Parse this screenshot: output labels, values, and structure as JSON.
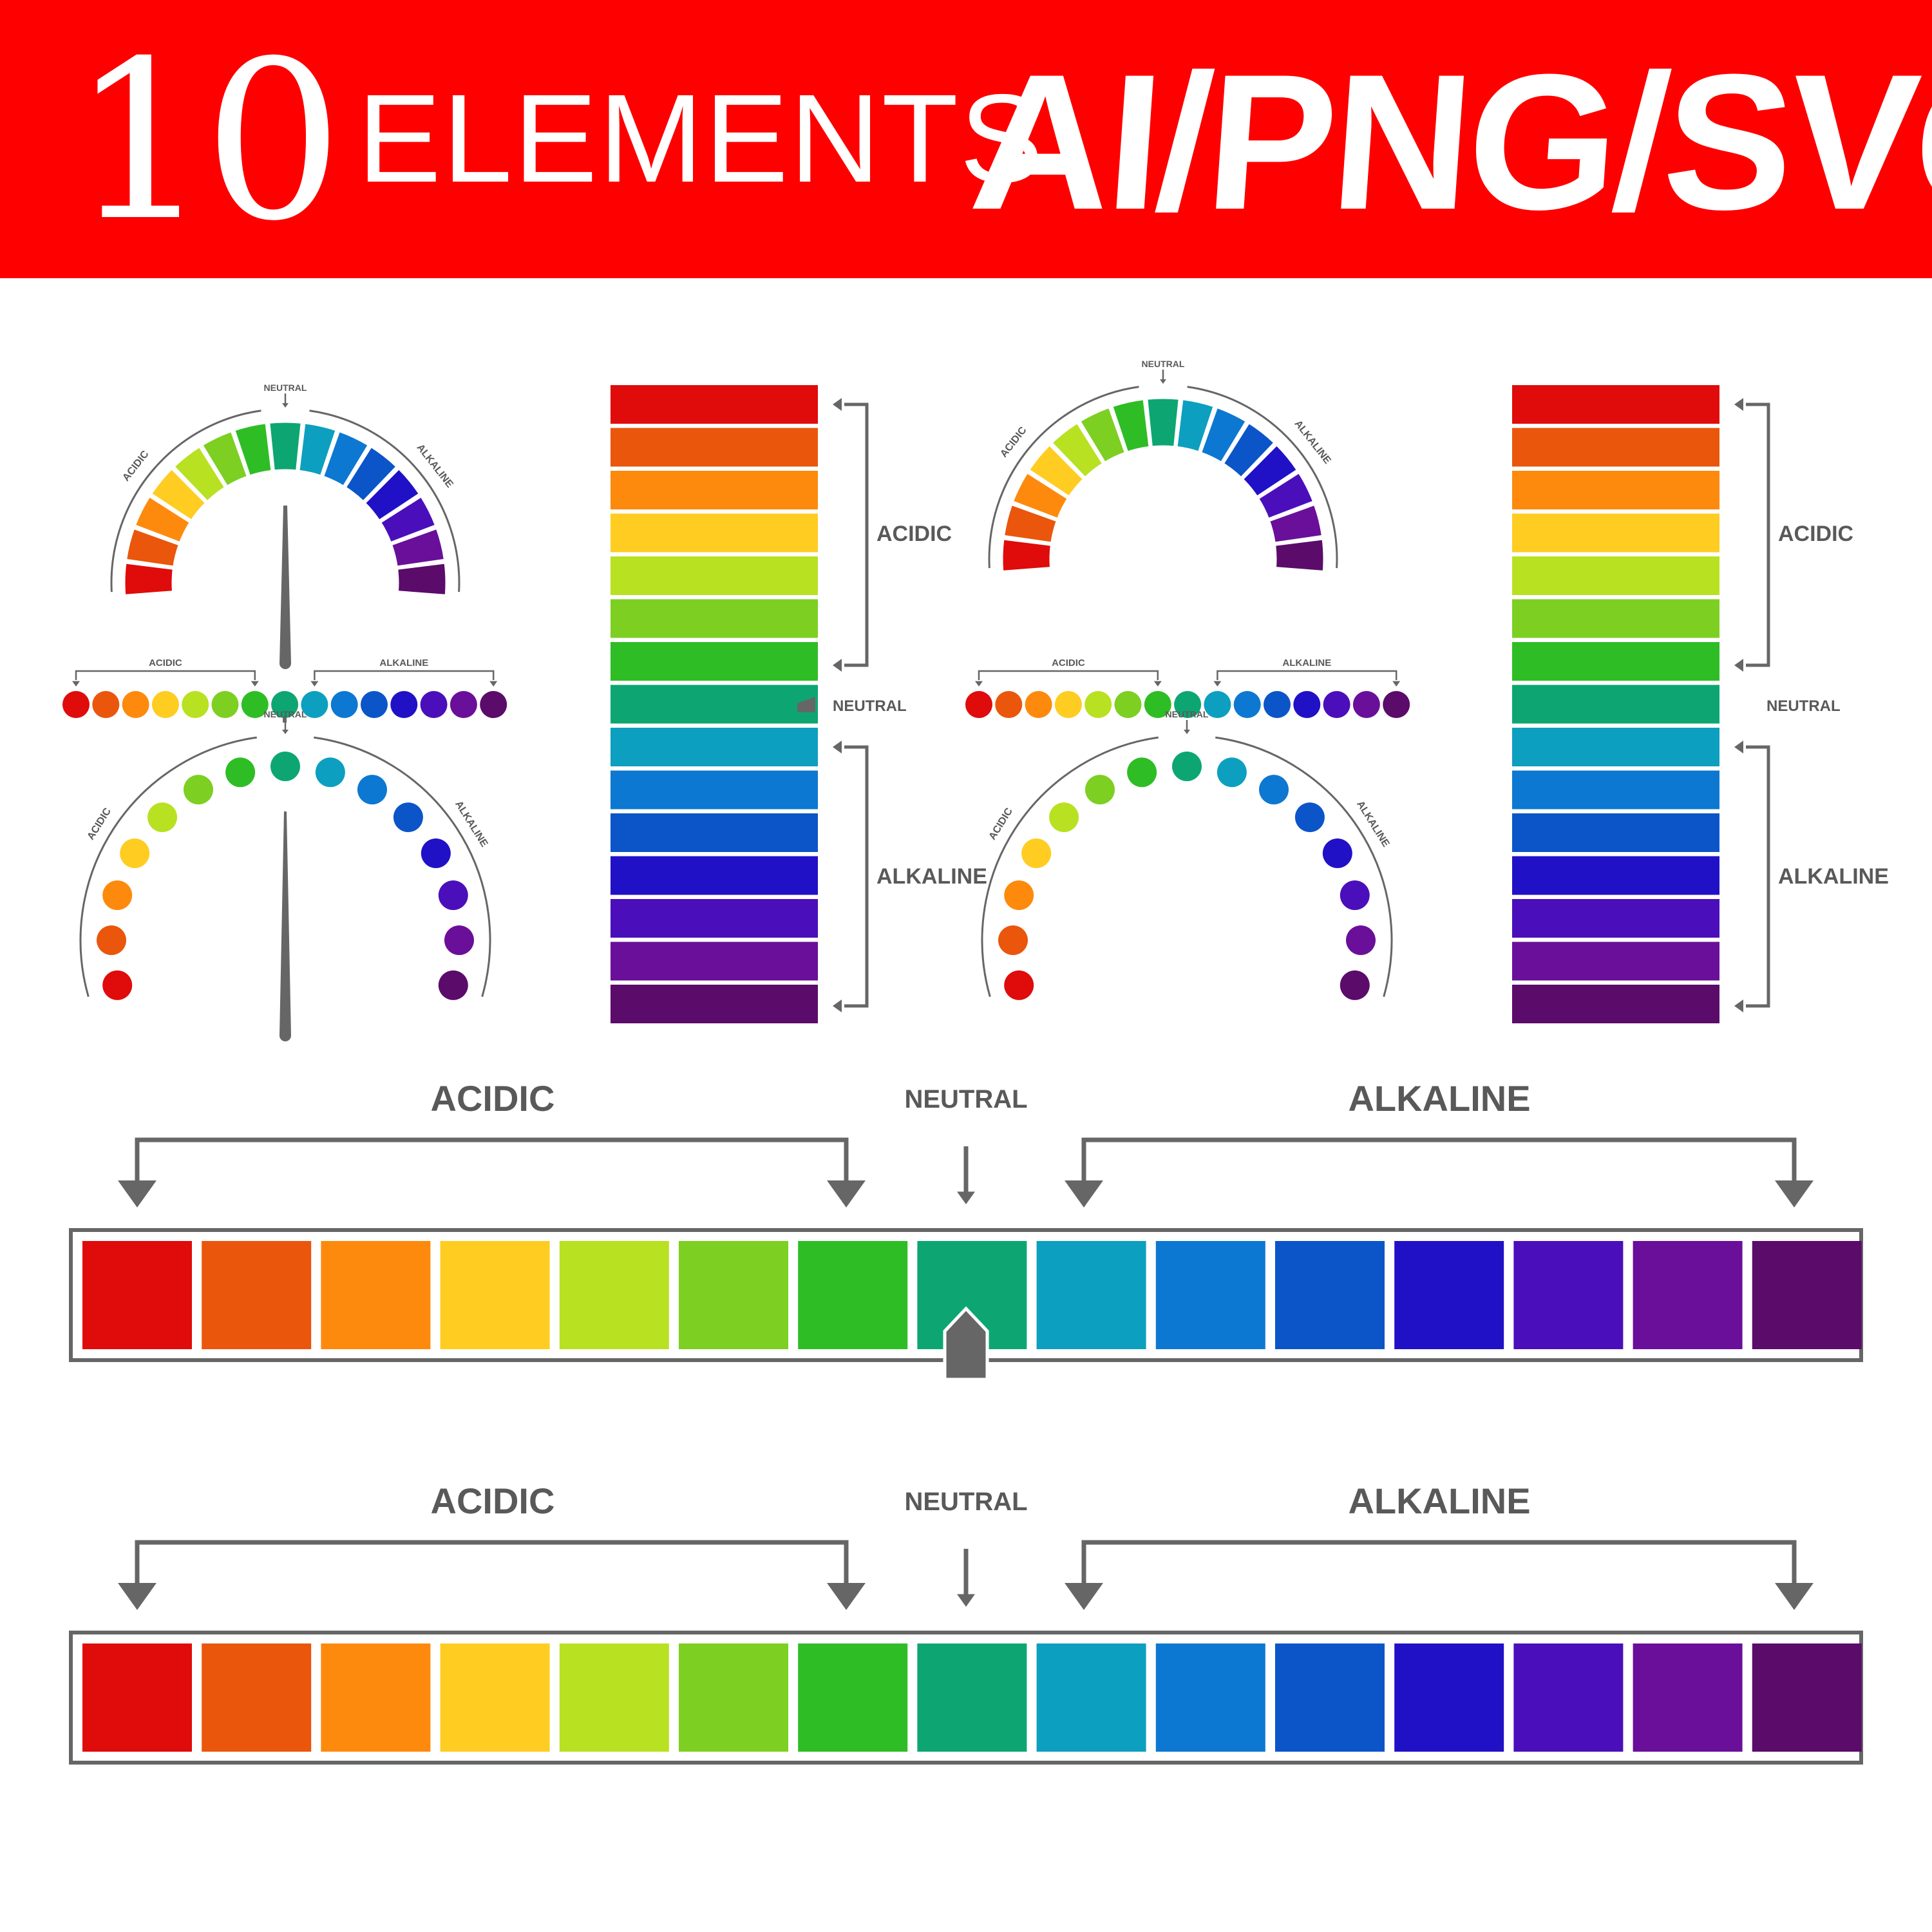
{
  "title": {
    "number": "10",
    "word": "ELEMENTS",
    "formats": "AI/PNG/SVG"
  },
  "labels": {
    "acidic": "ACIDIC",
    "neutral": "NEUTRAL",
    "alkaline": "ALKALINE"
  },
  "colors": {
    "banner": "#fe0000",
    "scale": [
      "#e00b0b",
      "#ea560c",
      "#fd8a0d",
      "#ffcc22",
      "#b8e122",
      "#7dcf22",
      "#2ebd25",
      "#0da672",
      "#0d9fbf",
      "#0d78d1",
      "#0b55c8",
      "#2011c7",
      "#4a0fbb",
      "#6a0f9a",
      "#5b0b6a"
    ],
    "text": "#595959",
    "frame": "#666666"
  }
}
